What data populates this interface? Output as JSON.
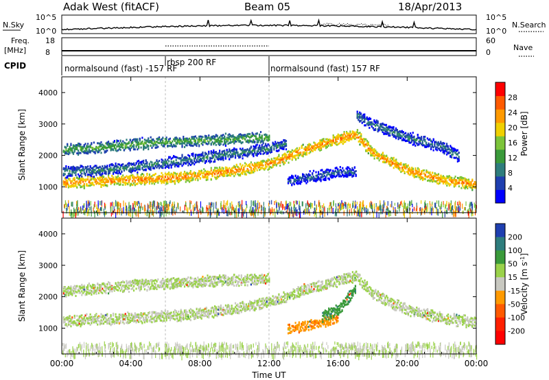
{
  "header": {
    "station": "Adak West (fitACF)",
    "beam": "Beam 05",
    "date": "18/Apr/2013"
  },
  "top_panels": {
    "nsky_label": "N.Sky",
    "nsky_ticks": [
      "10^5",
      "10^0"
    ],
    "nsearch_label": "N.Search",
    "nsearch_ticks": [
      "10^5",
      "10^0"
    ],
    "freq_label_line1": "Freq.",
    "freq_label_line2": "[MHz]",
    "freq_ticks": [
      "18",
      "8"
    ],
    "nave_label": "Nave",
    "nave_ticks": [
      "60",
      "0"
    ],
    "cpid_label": "CPID",
    "cpid_segments": [
      {
        "text": "normalsound (fast) -157 RF",
        "start_hr": 0,
        "end_hr": 6
      },
      {
        "text": "rbsp 200 RF",
        "start_hr": 6,
        "end_hr": 12
      },
      {
        "text": "normalsound (fast) 157 RF",
        "start_hr": 12,
        "end_hr": 24
      }
    ]
  },
  "chart_data": [
    {
      "type": "heatmap",
      "name": "Power",
      "ylabel": "Slant Range [km]",
      "ylim": [
        180,
        4500
      ],
      "yticks": [
        1000,
        2000,
        3000,
        4000
      ],
      "xlim_hours": [
        0,
        24
      ],
      "xticks": [
        "00:00",
        "04:00",
        "08:00",
        "12:00",
        "16:00",
        "20:00",
        "00:00"
      ],
      "colorbar": {
        "label": "Power [dB]",
        "ticks": [
          "4",
          "8",
          "12",
          "16",
          "20",
          "24",
          "28"
        ],
        "colors": [
          "#0000ff",
          "#1f3fb0",
          "#2e7d7d",
          "#3a9a3a",
          "#7cc43a",
          "#f0d000",
          "#ff9a00",
          "#ff5a00",
          "#ff0000"
        ]
      },
      "bands_km": [
        {
          "hours": [
            0,
            2,
            4,
            6,
            8,
            10,
            11.5,
            12.5,
            14,
            16,
            17,
            18,
            20,
            22,
            24
          ],
          "range": [
            1150,
            1200,
            1250,
            1300,
            1400,
            1550,
            1700,
            1850,
            2200,
            2550,
            2700,
            2100,
            1550,
            1250,
            1100
          ],
          "power": 26
        },
        {
          "hours": [
            0,
            2,
            4,
            6,
            8,
            10,
            12
          ],
          "range": [
            2200,
            2280,
            2380,
            2450,
            2500,
            2550,
            2600
          ],
          "power": 14
        },
        {
          "hours": [
            0,
            2,
            4,
            6,
            8,
            10,
            12,
            13
          ],
          "range": [
            1500,
            1550,
            1650,
            1800,
            1950,
            2100,
            2250,
            2400
          ],
          "power": 10
        },
        {
          "hours": [
            13,
            14,
            15,
            16,
            17
          ],
          "range": [
            1200,
            1300,
            1400,
            1500,
            1500
          ],
          "power": 7
        },
        {
          "hours": [
            17,
            18,
            20,
            22,
            23
          ],
          "range": [
            3300,
            3000,
            2600,
            2300,
            2000
          ],
          "power": 9
        }
      ]
    },
    {
      "type": "heatmap",
      "name": "Velocity",
      "ylabel": "Slant Range [km]",
      "ylim": [
        180,
        4500
      ],
      "yticks": [
        1000,
        2000,
        3000,
        4000
      ],
      "xlim_hours": [
        0,
        24
      ],
      "xticks": [
        "00:00",
        "04:00",
        "08:00",
        "12:00",
        "16:00",
        "20:00",
        "00:00"
      ],
      "xlabel": "Time UT",
      "colorbar": {
        "label": "Velocity [m s^-1]",
        "ticks": [
          "200",
          "100",
          "50",
          "15",
          "-15",
          "-50",
          "-100",
          "-200"
        ],
        "colors": [
          "#1f3fb0",
          "#2e7d7d",
          "#3a9a3a",
          "#9ad24a",
          "#c8c8c0",
          "#ff9a00",
          "#ff5a00",
          "#ff2000",
          "#ff0000"
        ]
      },
      "bands_km": [
        {
          "hours": [
            0,
            2,
            4,
            6,
            8,
            10,
            11.5,
            12.5,
            14,
            16,
            17,
            18,
            20,
            22,
            24
          ],
          "range": [
            1250,
            1300,
            1350,
            1400,
            1500,
            1650,
            1800,
            1950,
            2250,
            2550,
            2700,
            2100,
            1600,
            1350,
            1200
          ],
          "velocity": 0
        },
        {
          "hours": [
            0,
            2,
            4,
            6,
            8,
            10,
            12
          ],
          "range": [
            2200,
            2280,
            2380,
            2450,
            2500,
            2550,
            2600
          ],
          "velocity": 0
        },
        {
          "hours": [
            13,
            14,
            15,
            16
          ],
          "range": [
            1000,
            1100,
            1200,
            1350
          ],
          "velocity": -60
        },
        {
          "hours": [
            15,
            16,
            17
          ],
          "range": [
            1400,
            1600,
            2300
          ],
          "velocity": 60
        }
      ]
    }
  ]
}
